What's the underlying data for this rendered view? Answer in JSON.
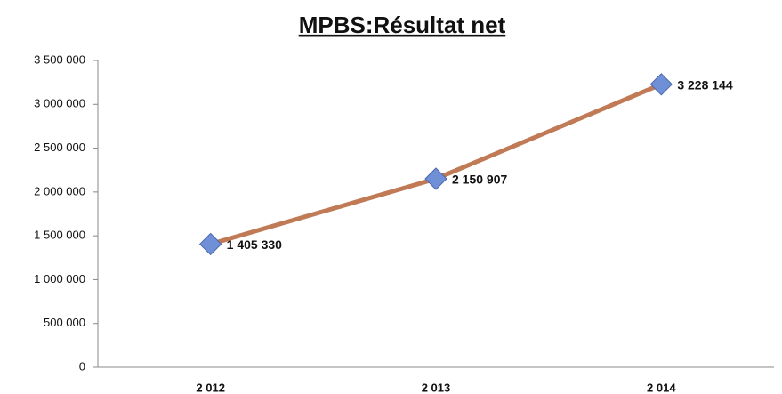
{
  "chart_data": {
    "type": "line",
    "title": "MPBS:Résultat net",
    "categories": [
      "2 012",
      "2 013",
      "2 014"
    ],
    "series": [
      {
        "name": "Résultat net",
        "color": "#c07a55",
        "marker_color": "#6f8fd6",
        "values": [
          1405330,
          2150907,
          3228144
        ],
        "value_labels": [
          "1 405 330",
          "2 150 907",
          "3 228 144"
        ]
      }
    ],
    "ylim": [
      0,
      3500000
    ],
    "yticks": [
      0,
      {
        "value": 500000,
        "label": "500 000"
      },
      {
        "value": 1000000,
        "label": "1 000 000"
      },
      {
        "value": 1500000,
        "label": "1 500 000"
      },
      {
        "value": 2000000,
        "label": "2 000 000"
      },
      {
        "value": 2500000,
        "label": "2 500 000"
      },
      {
        "value": 3000000,
        "label": "3 000 000"
      },
      {
        "value": 3500000,
        "label": "3 500 000"
      }
    ],
    "grid": false,
    "legend": false
  }
}
